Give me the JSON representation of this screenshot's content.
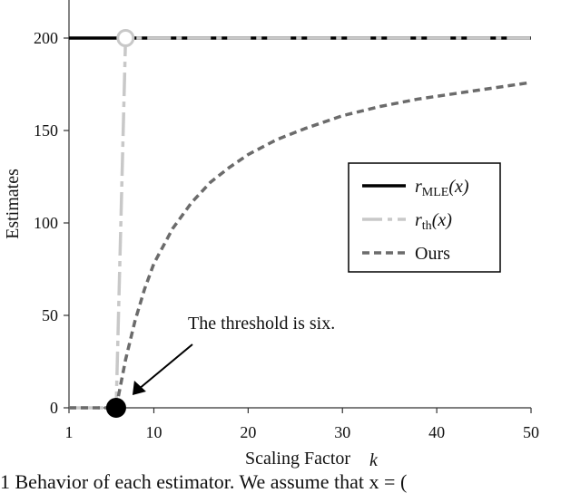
{
  "chart_data": {
    "type": "line",
    "title": "",
    "xlabel": "Scaling Factor",
    "xlabel_symbol": "k",
    "ylabel": "Estimates",
    "xlim": [
      1,
      50
    ],
    "ylim": [
      0,
      210
    ],
    "x_ticks": [
      1,
      10,
      20,
      30,
      40,
      50
    ],
    "y_ticks": [
      0,
      50,
      100,
      150,
      200
    ],
    "grid": false,
    "legend_position": "center-right",
    "series": [
      {
        "name": "r_MLE(x)",
        "label_main": "r",
        "label_sub": "MLE",
        "label_arg": "(x)",
        "style": "solid",
        "color": "#000000",
        "x": [
          1,
          50
        ],
        "y": [
          200,
          200
        ]
      },
      {
        "name": "r_th(x)",
        "label_main": "r",
        "label_sub": "th",
        "label_arg": "(x)",
        "style": "dash-dot",
        "color": "#c8c8c8",
        "x": [
          1,
          6,
          6,
          7,
          50
        ],
        "y": [
          0,
          0,
          0,
          200,
          200
        ]
      },
      {
        "name": "Ours",
        "label_main": "Ours",
        "label_sub": "",
        "label_arg": "",
        "style": "short-dash",
        "color": "#6b6b6b",
        "x": [
          1,
          6,
          6.5,
          7,
          8,
          9,
          10,
          12,
          14,
          16,
          18,
          20,
          23,
          26,
          30,
          34,
          38,
          42,
          46,
          50
        ],
        "y": [
          0,
          0,
          13,
          26,
          47,
          64,
          78,
          97,
          111,
          122,
          130,
          137,
          145,
          151,
          158,
          163,
          167,
          170,
          173,
          176
        ]
      }
    ],
    "markers": [
      {
        "name": "threshold-point",
        "x": 6,
        "y": 0,
        "fill": "#000000"
      },
      {
        "name": "open-circle",
        "x": 7,
        "y": 200,
        "fill": "#ffffff"
      }
    ],
    "annotation": {
      "text": "The threshold is six.",
      "target_x": 6,
      "target_y": 0
    }
  },
  "caption": "1  Behavior of each estimator. We assume that x = ("
}
